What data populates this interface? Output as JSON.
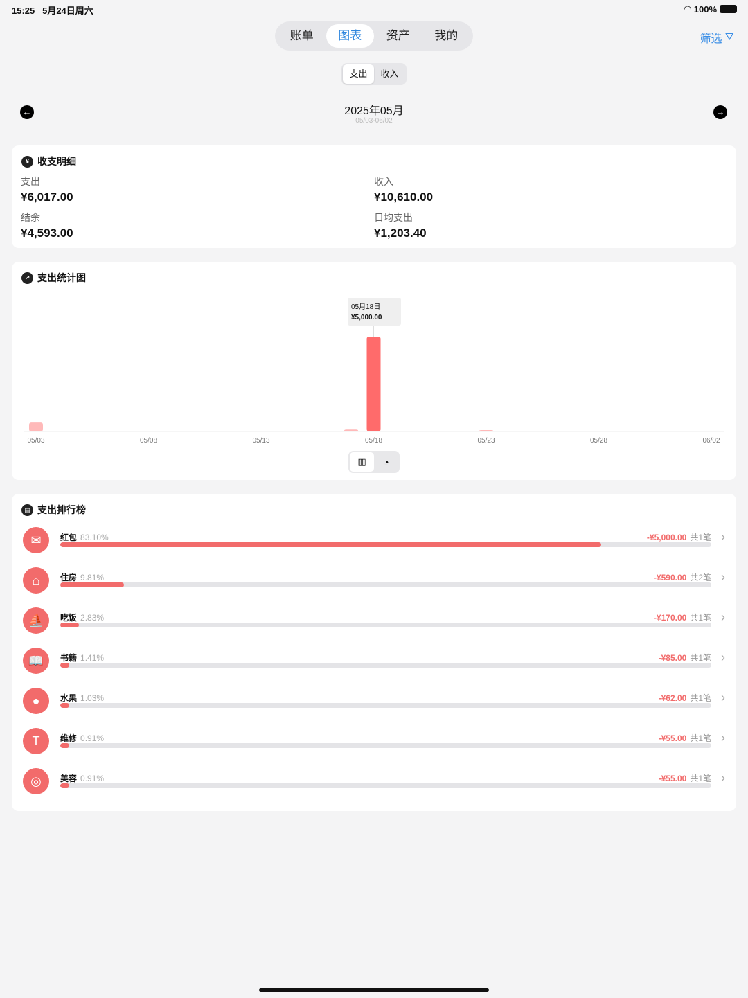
{
  "status": {
    "time": "15:25",
    "date": "5月24日周六",
    "battery": "100%"
  },
  "tabs": [
    {
      "label": "账单"
    },
    {
      "label": "图表",
      "active": true
    },
    {
      "label": "资产"
    },
    {
      "label": "我的"
    }
  ],
  "filter_label": "筛选",
  "type_toggle": [
    {
      "label": "支出",
      "active": true
    },
    {
      "label": "收入"
    }
  ],
  "period": {
    "title": "2025年05月",
    "range": "05/03-06/02"
  },
  "summary": {
    "title": "收支明细",
    "items": [
      {
        "label": "支出",
        "value": "¥6,017.00"
      },
      {
        "label": "收入",
        "value": "¥10,610.00"
      },
      {
        "label": "结余",
        "value": "¥4,593.00"
      },
      {
        "label": "日均支出",
        "value": "¥1,203.40"
      }
    ]
  },
  "chart_card": {
    "title": "支出统计图",
    "tooltip": {
      "date": "05月18日",
      "value": "¥5,000.00"
    }
  },
  "chart_data": {
    "type": "bar",
    "x_start": "05/03",
    "x_end": "06/02",
    "tick_labels": [
      "05/03",
      "05/08",
      "05/13",
      "05/18",
      "05/23",
      "05/28",
      "06/02"
    ],
    "points": [
      {
        "x": "05/03",
        "y": 470
      },
      {
        "x": "05/17",
        "y": 100
      },
      {
        "x": "05/18",
        "y": 5000
      },
      {
        "x": "05/23",
        "y": 60
      }
    ],
    "highlighted": "05/18",
    "ylim": [
      0,
      5000
    ],
    "grid": false,
    "color": "#ff6b6b"
  },
  "ranking": {
    "title": "支出排行榜",
    "items": [
      {
        "name": "红包",
        "pct": "83.10%",
        "fraction": 0.831,
        "amount": "-¥5,000.00",
        "count": "共1笔",
        "icon": "red-envelope"
      },
      {
        "name": "住房",
        "pct": "9.81%",
        "fraction": 0.0981,
        "amount": "-¥590.00",
        "count": "共2笔",
        "icon": "house"
      },
      {
        "name": "吃饭",
        "pct": "2.83%",
        "fraction": 0.0283,
        "amount": "-¥170.00",
        "count": "共1笔",
        "icon": "sailboat"
      },
      {
        "name": "书籍",
        "pct": "1.41%",
        "fraction": 0.0141,
        "amount": "-¥85.00",
        "count": "共1笔",
        "icon": "book"
      },
      {
        "name": "水果",
        "pct": "1.03%",
        "fraction": 0.0103,
        "amount": "-¥62.00",
        "count": "共1笔",
        "icon": "apple"
      },
      {
        "name": "维修",
        "pct": "0.91%",
        "fraction": 0.0091,
        "amount": "-¥55.00",
        "count": "共1笔",
        "icon": "hammer"
      },
      {
        "name": "美容",
        "pct": "0.91%",
        "fraction": 0.0091,
        "amount": "-¥55.00",
        "count": "共1笔",
        "icon": "mirror"
      }
    ]
  }
}
